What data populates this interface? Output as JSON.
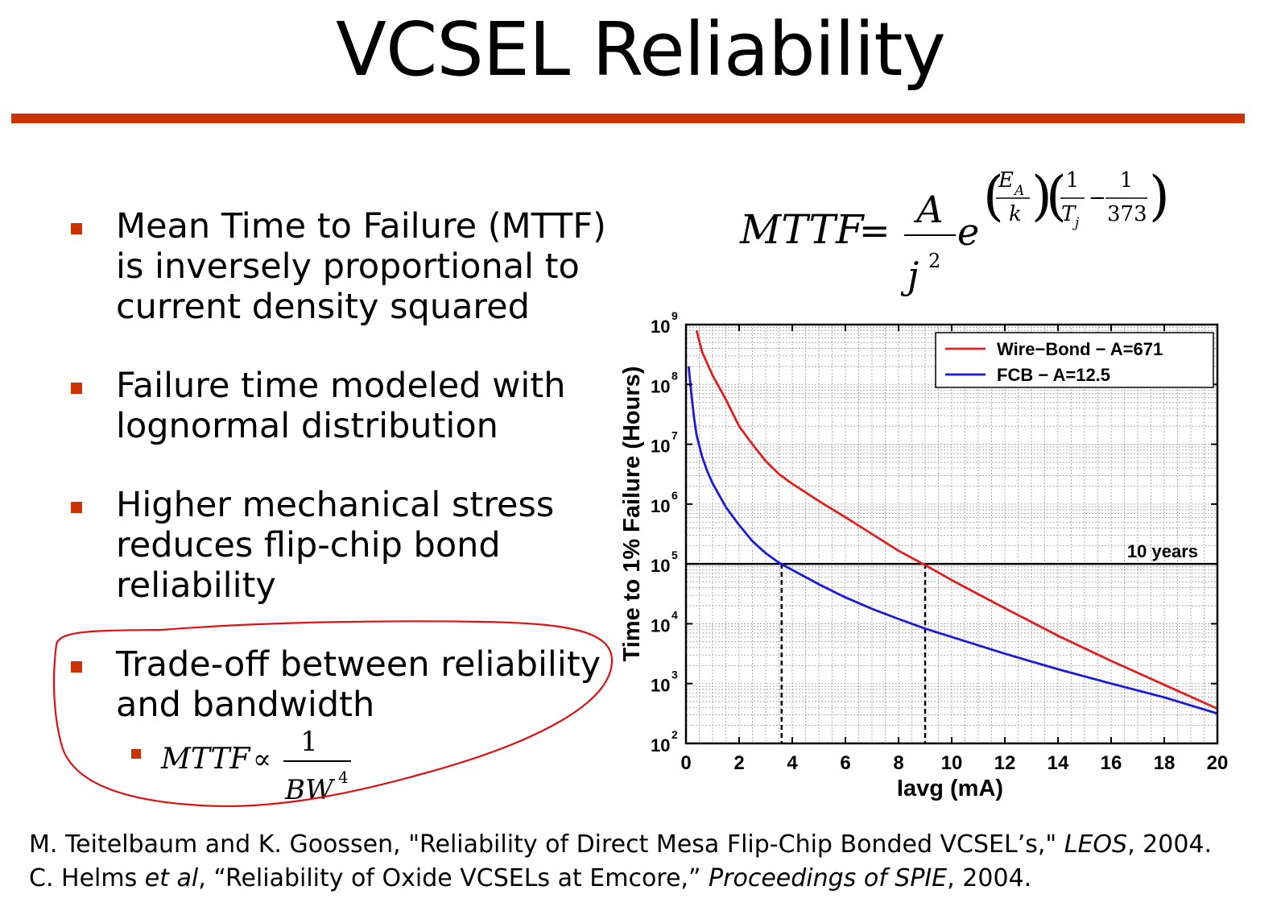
{
  "slide": {
    "title": "VCSEL Reliability",
    "accent_color": "#cc3300",
    "bullets": [
      "Mean Time to Failure (MTTF) is inversely proportional to current density squared",
      "Failure time modeled with lognormal distribution",
      "Higher mechanical stress reduces flip-chip bond reliability",
      "Trade-off between reliability and bandwidth"
    ],
    "bullet_lines": [
      [
        "Mean Time to Failure (MTTF)",
        "is inversely proportional to",
        "current density squared"
      ],
      [
        "Failure time modeled with",
        "lognormal distribution"
      ],
      [
        "Higher mechanical stress",
        "reduces flip-chip bond",
        "reliability"
      ],
      [
        "Trade-off between reliability",
        "and bandwidth"
      ]
    ],
    "sub_formula": {
      "lhs": "MTTF",
      "relation": "∝",
      "numerator": "1",
      "denominator": "BW",
      "exponent": "4"
    },
    "main_formula": {
      "lhs": "MTTF",
      "equals": "=",
      "numerator": "A",
      "denominator": "j",
      "denominator_exponent": "2",
      "base": "e",
      "exp_ea": "E",
      "exp_ea_sub": "A",
      "exp_k": "k",
      "exp_one_a": "1",
      "exp_tj": "T",
      "exp_tj_sub": "j",
      "exp_minus": "−",
      "exp_one_b": "1",
      "exp_373": "373"
    },
    "highlight_color": "#dd1111",
    "references": {
      "ref1_plain": "M. Teitelbaum and K. Goossen, \"Reliability of Direct Mesa Flip-Chip Bonded VCSEL’s,\" ",
      "ref1_italic": "LEOS",
      "ref1_end": ", 2004.",
      "ref2_plain": "C. Helms ",
      "ref2_italic1": "et al",
      "ref2_mid": ", “Reliability of Oxide VCSELs at Emcore,” ",
      "ref2_italic2": "Proceedings of SPIE",
      "ref2_end": ", 2004."
    }
  },
  "chart_data": {
    "type": "line",
    "title": "",
    "xlabel": "Iavg (mA)",
    "ylabel": "Time to 1% Failure (Hours)",
    "xlim": [
      0,
      20
    ],
    "ylim_log10": [
      2,
      9
    ],
    "x_ticks": [
      0,
      2,
      4,
      6,
      8,
      10,
      12,
      14,
      16,
      18,
      20
    ],
    "y_tick_base": "10",
    "y_tick_exponents": [
      2,
      3,
      4,
      5,
      6,
      7,
      8,
      9
    ],
    "grid": true,
    "legend_position": "top-right",
    "series": [
      {
        "name": "Wire−Bond − A=671",
        "color": "#e02020",
        "x": [
          0.4,
          0.6,
          0.8,
          1.0,
          1.5,
          2.0,
          2.5,
          3.0,
          3.5,
          4.0,
          5.0,
          6.0,
          7.0,
          8.0,
          9.0,
          10.0,
          12.0,
          14.0,
          16.0,
          18.0,
          20.0
        ],
        "log10y": [
          8.9,
          8.55,
          8.35,
          8.15,
          7.75,
          7.3,
          7.0,
          6.72,
          6.5,
          6.34,
          6.05,
          5.78,
          5.5,
          5.22,
          4.98,
          4.73,
          4.26,
          3.8,
          3.38,
          2.98,
          2.58
        ]
      },
      {
        "name": "FCB − A=12.5",
        "color": "#1a1ad8",
        "x": [
          0.1,
          0.2,
          0.3,
          0.4,
          0.6,
          0.8,
          1.0,
          1.5,
          2.0,
          2.5,
          3.0,
          3.5,
          4.0,
          5.0,
          6.0,
          7.0,
          8.0,
          9.0,
          10.0,
          12.0,
          14.0,
          16.0,
          18.0,
          20.0
        ],
        "log10y": [
          8.3,
          7.85,
          7.45,
          7.15,
          6.8,
          6.55,
          6.35,
          5.95,
          5.65,
          5.38,
          5.18,
          5.02,
          4.9,
          4.66,
          4.44,
          4.25,
          4.08,
          3.92,
          3.78,
          3.5,
          3.24,
          3.0,
          2.77,
          2.5
        ]
      }
    ],
    "reference_line": {
      "log10y": 5,
      "label": "10 years"
    },
    "crossings": [
      {
        "series": "FCB − A=12.5",
        "x": 3.6
      },
      {
        "series": "Wire−Bond − A=671",
        "x": 9.0
      }
    ]
  }
}
